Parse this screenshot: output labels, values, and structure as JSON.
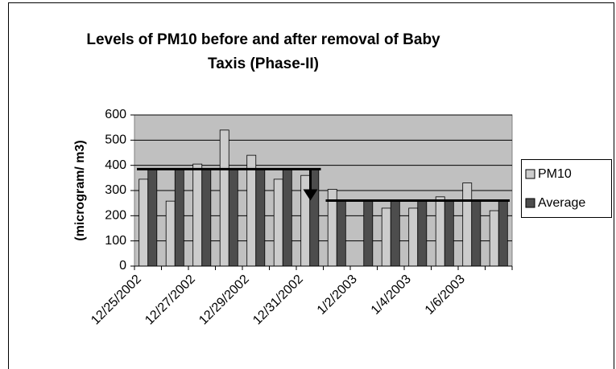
{
  "chart_data": {
    "type": "bar",
    "title": [
      "Levels of PM10 before and after removal of Baby",
      "Taxis (Phase-II)"
    ],
    "y_label": "(microgram/ m3)",
    "categories": [
      "12/25/2002",
      null,
      "12/27/2002",
      null,
      "12/29/2002",
      null,
      "12/31/2002",
      null,
      "1/2/2003",
      null,
      "1/4/2003",
      null,
      "1/6/2003",
      null
    ],
    "series": [
      {
        "name": "PM10",
        "color": "#cccccc",
        "values": [
          345,
          258,
          405,
          540,
          440,
          345,
          360,
          305,
          null,
          230,
          230,
          275,
          330,
          220
        ]
      },
      {
        "name": "Average",
        "color": "#4d4d4d",
        "values": [
          385,
          385,
          385,
          385,
          385,
          385,
          385,
          260,
          260,
          260,
          260,
          260,
          260,
          260
        ]
      }
    ],
    "ylim": [
      0,
      600
    ],
    "yticks": [
      0,
      100,
      200,
      300,
      400,
      500,
      600
    ],
    "grid": true,
    "legend": "right"
  }
}
